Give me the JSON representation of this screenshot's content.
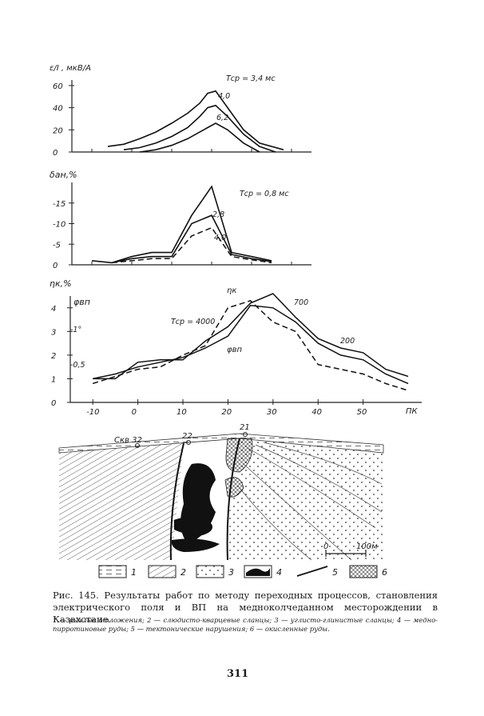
{
  "panels": {
    "top": {
      "ylabel": "ε/I , мкВ/А",
      "yticks": [
        0,
        20,
        40,
        60
      ],
      "curve_labels": [
        "Tср = 3,4 мс",
        "4,0",
        "6,2"
      ]
    },
    "middle": {
      "ylabel": "δан,%",
      "yticks": [
        0,
        -5,
        -10,
        -15
      ],
      "curve_labels": [
        "Tср = 0,8 мс",
        "2,8",
        "4,0"
      ]
    },
    "bottom": {
      "ylabel": "ηк,%",
      "ylabel2": "φвп",
      "yticks": [
        0,
        1,
        2,
        3,
        4
      ],
      "yticks2": [
        "-1°",
        "-0,5"
      ],
      "curve_labels": [
        "ηк",
        "Tср = 4000",
        "φвп",
        "700",
        "200"
      ],
      "xticks": [
        -10,
        0,
        10,
        20,
        30,
        40,
        50
      ],
      "xlabel": "ПК"
    }
  },
  "chart_data": [
    {
      "type": "line",
      "title": "",
      "ylabel": "ε/I, мкВ/А",
      "xlabel": "ПК",
      "ylim": [
        0,
        60
      ],
      "series": [
        {
          "name": "Tср = 3,4 мс",
          "x": [
            -6,
            -2,
            2,
            6,
            10,
            14,
            17,
            19,
            21,
            24,
            28,
            32,
            38
          ],
          "y": [
            5,
            7,
            12,
            18,
            26,
            35,
            44,
            53,
            55,
            40,
            20,
            8,
            2
          ]
        },
        {
          "name": "4,0",
          "x": [
            -2,
            2,
            6,
            10,
            14,
            17,
            19,
            21,
            24,
            28,
            32,
            36
          ],
          "y": [
            2,
            4,
            8,
            14,
            22,
            32,
            40,
            42,
            32,
            16,
            5,
            0
          ]
        },
        {
          "name": "6,2",
          "x": [
            2,
            6,
            10,
            14,
            17,
            19,
            21,
            24,
            28,
            32
          ],
          "y": [
            0,
            2,
            6,
            12,
            18,
            22,
            26,
            20,
            8,
            0
          ]
        }
      ]
    },
    {
      "type": "line",
      "title": "",
      "ylabel": "δан, %",
      "xlabel": "ПК",
      "ylim": [
        0,
        -20
      ],
      "series": [
        {
          "name": "Tср = 0,8 мс",
          "x": [
            -10,
            -5,
            0,
            5,
            10,
            15,
            20,
            25,
            30,
            35
          ],
          "y": [
            -1,
            -0.5,
            -2,
            -3,
            -3,
            -12,
            -19,
            -3,
            -2,
            -1
          ]
        },
        {
          "name": "2,8",
          "x": [
            -5,
            0,
            5,
            10,
            15,
            20,
            25,
            30,
            35
          ],
          "y": [
            -0.5,
            -1.5,
            -2,
            -2,
            -10,
            -12,
            -2.5,
            -1.5,
            -0.8
          ]
        },
        {
          "name": "4,0",
          "x": [
            -5,
            0,
            5,
            10,
            15,
            20,
            25,
            30,
            35
          ],
          "y": [
            -0.5,
            -1,
            -1.5,
            -1.5,
            -7,
            -9,
            -2,
            -1.2,
            -0.5
          ]
        }
      ]
    },
    {
      "type": "line",
      "title": "",
      "ylabel": "ηк, %",
      "xlabel": "ПК",
      "xlim": [
        -15,
        63
      ],
      "ylim": [
        0,
        4.5
      ],
      "xticks": [
        -10,
        0,
        10,
        20,
        30,
        40,
        50
      ],
      "series": [
        {
          "name": "ηк",
          "x": [
            -10,
            -5,
            0,
            5,
            10,
            15,
            20,
            25,
            30,
            35,
            40,
            45,
            50,
            55,
            60
          ],
          "y": [
            1,
            1,
            1.7,
            1.8,
            1.8,
            2.6,
            3.2,
            4.2,
            4.6,
            3.6,
            2.7,
            2.3,
            2.1,
            1.4,
            1.1
          ]
        },
        {
          "name": "φвп",
          "x": [
            -10,
            -5,
            0,
            5,
            10,
            15,
            20,
            25,
            30,
            35,
            40,
            45,
            50,
            55,
            60
          ],
          "y": [
            0.8,
            1.1,
            1.4,
            1.5,
            2.0,
            2.4,
            4.0,
            4.3,
            3.4,
            3.0,
            1.6,
            1.4,
            1.2,
            0.8,
            0.5
          ]
        },
        {
          "name": "",
          "x": [
            -10,
            -5,
            0,
            5,
            10,
            15,
            20,
            25,
            30,
            35,
            40,
            45,
            50,
            55,
            60
          ],
          "y": [
            1.0,
            1.2,
            1.5,
            1.7,
            1.9,
            2.3,
            2.8,
            4.1,
            4.0,
            3.4,
            2.5,
            2.0,
            1.8,
            1.2,
            0.8
          ]
        }
      ]
    }
  ],
  "section": {
    "well_labels": [
      "Скв 32",
      "22",
      "21"
    ],
    "scale_labels": [
      "0",
      "100м"
    ]
  },
  "legend": {
    "items": [
      "1",
      "2",
      "3",
      "4",
      "5",
      "6"
    ]
  },
  "caption": {
    "title": "Рис. 145. Результаты работ по методу переходных процессов, становления электрического поля и ВП на медноколчеданном месторождении в Казахстане.",
    "legend_text": "1 — рыхлые отложения; 2 — слюдисто-кварцевые сланцы; 3 — углисто-глинистые сланцы; 4 — медно-пирротиновые руды; 5 — тектонические нарушения; 6 — окисленные руды."
  },
  "page_number": "311"
}
